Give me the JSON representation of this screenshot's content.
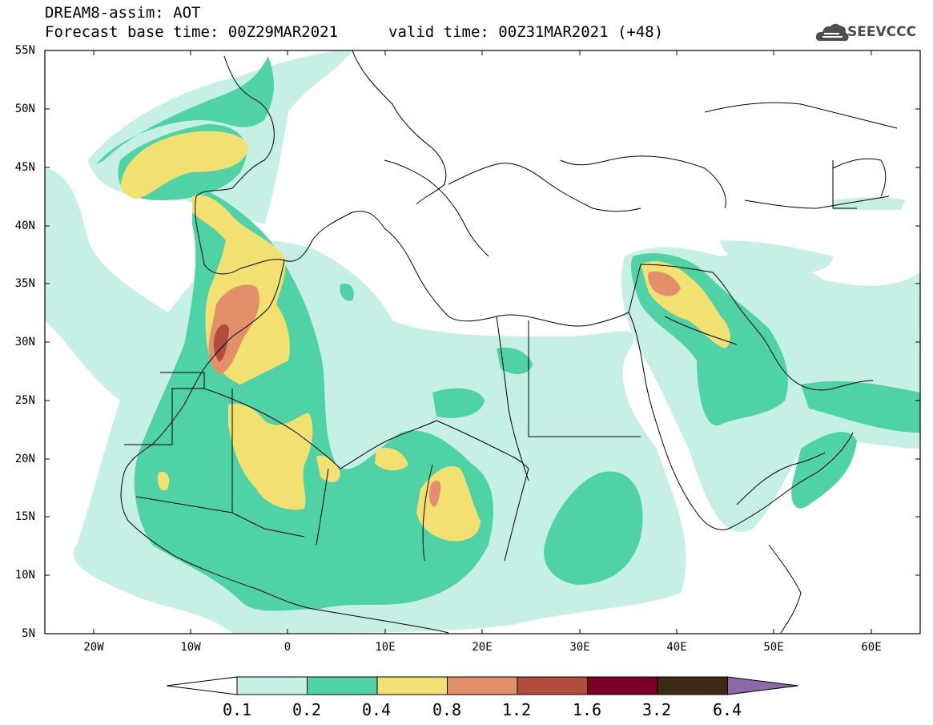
{
  "header": {
    "title_line1": "DREAM8-assim: AOT",
    "title_line2": "Forecast base time: 00Z29MAR2021",
    "valid_time": "valid time: 00Z31MAR2021 (+48)",
    "logo_text": "SEEVCCC"
  },
  "map": {
    "variable": "AOT",
    "lon_range": [
      -25,
      65
    ],
    "lat_range": [
      5,
      55
    ],
    "lat_ticks": [
      "55N",
      "50N",
      "45N",
      "40N",
      "35N",
      "30N",
      "25N",
      "20N",
      "15N",
      "10N",
      "5N"
    ],
    "lon_ticks": [
      "20W",
      "10W",
      "0",
      "10E",
      "20E",
      "30E",
      "40E",
      "50E",
      "60E"
    ]
  },
  "colorbar": {
    "labels": [
      "0.1",
      "0.2",
      "0.4",
      "0.8",
      "1.2",
      "1.6",
      "3.2",
      "6.4"
    ],
    "colors": [
      "#ffffff",
      "#c6efe6",
      "#4fd2a5",
      "#f2e070",
      "#e3906a",
      "#b14b3d",
      "#7c0026",
      "#3f2a16",
      "#8c6aa8"
    ]
  }
}
